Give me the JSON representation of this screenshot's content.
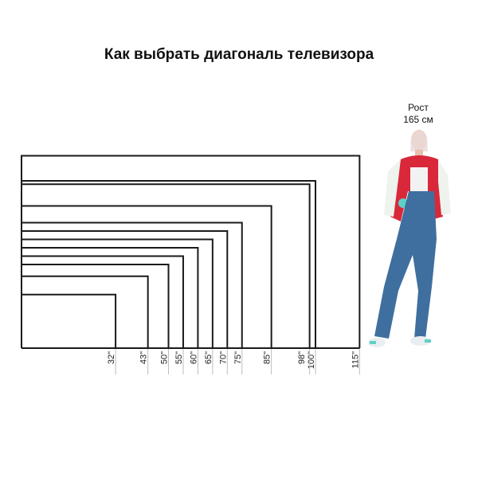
{
  "title": "Как выбрать диагональ телевизора",
  "person": {
    "label_line1": "Рост",
    "label_line2": "165 см"
  },
  "tv_sizes": [
    {
      "diagonal": 32,
      "label": "32\""
    },
    {
      "diagonal": 43,
      "label": "43\""
    },
    {
      "diagonal": 50,
      "label": "50\""
    },
    {
      "diagonal": 55,
      "label": "55\""
    },
    {
      "diagonal": 60,
      "label": "60\""
    },
    {
      "diagonal": 65,
      "label": "65\""
    },
    {
      "diagonal": 70,
      "label": "70\""
    },
    {
      "diagonal": 75,
      "label": "75\""
    },
    {
      "diagonal": 85,
      "label": "85\""
    },
    {
      "diagonal": 98,
      "label": "98\""
    },
    {
      "diagonal": 100,
      "label": "100\""
    },
    {
      "diagonal": 115,
      "label": "115\""
    }
  ],
  "colors": {
    "outline": "#1a1a1a",
    "tick": "#bdbdbd",
    "jacket": "#d8283a",
    "jeans": "#3f6f9e",
    "accent": "#5fd0c6"
  }
}
